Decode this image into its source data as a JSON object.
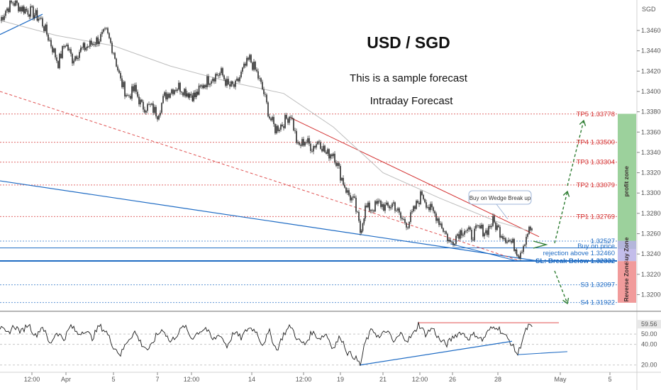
{
  "chart_data": {
    "type": "line",
    "title": "USD / SGD",
    "subtitle_lines": [
      "This is a sample forecast",
      "Intraday Forecast"
    ],
    "currency_label": "SGD",
    "y_ticks": [
      1.346,
      1.344,
      1.342,
      1.34,
      1.338,
      1.336,
      1.334,
      1.332,
      1.33,
      1.328,
      1.326,
      1.324,
      1.322,
      1.32
    ],
    "ylim": [
      1.3185,
      1.349
    ],
    "x_ticks": [
      "12:00",
      "Apr",
      "5",
      "7",
      "12:00",
      "14",
      "12:00",
      "19",
      "21",
      "12:00",
      "26",
      "28",
      "May",
      "5"
    ],
    "price_labels": [
      {
        "text": "TP5 1.33778",
        "value": 1.33778,
        "color": "#d32f2f"
      },
      {
        "text": "TP4 1.33500",
        "value": 1.335,
        "color": "#d32f2f"
      },
      {
        "text": "TP3 1.33304",
        "value": 1.33304,
        "color": "#d32f2f"
      },
      {
        "text": "TP2 1.33079",
        "value": 1.33079,
        "color": "#d32f2f"
      },
      {
        "text": "TP1 1.32769",
        "value": 1.32769,
        "color": "#d32f2f"
      },
      {
        "text": "1.32527",
        "value": 1.32527,
        "color": "#1e6bc4"
      },
      {
        "text": "SL: Break Below 1.32332",
        "value": 1.32332,
        "color": "#1565c0"
      },
      {
        "text": "S3 1.32097",
        "value": 1.32097,
        "color": "#1e6bc4"
      },
      {
        "text": "S4 1.31922",
        "value": 1.31922,
        "color": "#1e6bc4"
      }
    ],
    "buy_text": [
      "Buy on price",
      "rejection above 1.32460"
    ],
    "callout": "Buy on Wedge Break up",
    "zones": [
      {
        "label": "profit zone",
        "from": 1.3245,
        "to": 1.3378,
        "color": "#8bc98b"
      },
      {
        "label": "Buy Zone",
        "from": 1.3233,
        "to": 1.3253,
        "color": "#b9b2e6"
      },
      {
        "label": "Reverse Zone",
        "from": 1.3192,
        "to": 1.3233,
        "color": "#ef8a8a"
      }
    ],
    "price_series": [
      [
        0,
        1.347
      ],
      [
        8,
        1.348
      ],
      [
        18,
        1.3488
      ],
      [
        30,
        1.3482
      ],
      [
        45,
        1.3478
      ],
      [
        58,
        1.347
      ],
      [
        70,
        1.345
      ],
      [
        82,
        1.3428
      ],
      [
        92,
        1.3448
      ],
      [
        102,
        1.3432
      ],
      [
        112,
        1.344
      ],
      [
        125,
        1.3445
      ],
      [
        140,
        1.3452
      ],
      [
        150,
        1.3458
      ],
      [
        160,
        1.344
      ],
      [
        170,
        1.341
      ],
      [
        180,
        1.3395
      ],
      [
        190,
        1.3402
      ],
      [
        200,
        1.3385
      ],
      [
        212,
        1.3385
      ],
      [
        222,
        1.3378
      ],
      [
        232,
        1.3395
      ],
      [
        242,
        1.3402
      ],
      [
        252,
        1.3405
      ],
      [
        262,
        1.34
      ],
      [
        275,
        1.3395
      ],
      [
        288,
        1.3408
      ],
      [
        300,
        1.3415
      ],
      [
        312,
        1.3418
      ],
      [
        322,
        1.3405
      ],
      [
        332,
        1.3405
      ],
      [
        342,
        1.342
      ],
      [
        352,
        1.3432
      ],
      [
        362,
        1.3418
      ],
      [
        372,
        1.3398
      ],
      [
        380,
        1.3375
      ],
      [
        388,
        1.3363
      ],
      [
        398,
        1.3368
      ],
      [
        410,
        1.3378
      ],
      [
        420,
        1.3345
      ],
      [
        430,
        1.3352
      ],
      [
        440,
        1.3345
      ],
      [
        450,
        1.3352
      ],
      [
        460,
        1.3338
      ],
      [
        470,
        1.334
      ],
      [
        480,
        1.3318
      ],
      [
        490,
        1.33
      ],
      [
        500,
        1.329
      ],
      [
        508,
        1.3262
      ],
      [
        515,
        1.3285
      ],
      [
        525,
        1.3285
      ],
      [
        535,
        1.329
      ],
      [
        545,
        1.3285
      ],
      [
        555,
        1.329
      ],
      [
        565,
        1.3275
      ],
      [
        575,
        1.327
      ],
      [
        585,
        1.3285
      ],
      [
        595,
        1.33
      ],
      [
        605,
        1.3285
      ],
      [
        615,
        1.3278
      ],
      [
        625,
        1.3265
      ],
      [
        635,
        1.325
      ],
      [
        645,
        1.326
      ],
      [
        655,
        1.3265
      ],
      [
        665,
        1.3258
      ],
      [
        675,
        1.3265
      ],
      [
        685,
        1.3262
      ],
      [
        695,
        1.3272
      ],
      [
        705,
        1.3262
      ],
      [
        715,
        1.3255
      ],
      [
        725,
        1.3248
      ],
      [
        732,
        1.324
      ],
      [
        738,
        1.325
      ],
      [
        744,
        1.3262
      ],
      [
        750,
        1.3265
      ]
    ],
    "rsi_y_ticks": [
      59.56,
      50.0,
      40.0,
      20.0
    ],
    "rsi_ylim": [
      15,
      70
    ],
    "rsi_series": [
      [
        0,
        56
      ],
      [
        10,
        50
      ],
      [
        20,
        58
      ],
      [
        30,
        52
      ],
      [
        40,
        60
      ],
      [
        50,
        48
      ],
      [
        60,
        58
      ],
      [
        70,
        40
      ],
      [
        80,
        52
      ],
      [
        90,
        45
      ],
      [
        100,
        58
      ],
      [
        110,
        50
      ],
      [
        120,
        54
      ],
      [
        130,
        46
      ],
      [
        140,
        58
      ],
      [
        150,
        52
      ],
      [
        160,
        38
      ],
      [
        170,
        30
      ],
      [
        180,
        44
      ],
      [
        190,
        52
      ],
      [
        200,
        40
      ],
      [
        210,
        34
      ],
      [
        220,
        48
      ],
      [
        230,
        55
      ],
      [
        240,
        42
      ],
      [
        250,
        50
      ],
      [
        260,
        58
      ],
      [
        270,
        46
      ],
      [
        280,
        52
      ],
      [
        290,
        56
      ],
      [
        300,
        44
      ],
      [
        310,
        50
      ],
      [
        320,
        38
      ],
      [
        330,
        52
      ],
      [
        340,
        46
      ],
      [
        350,
        56
      ],
      [
        360,
        54
      ],
      [
        370,
        40
      ],
      [
        380,
        52
      ],
      [
        390,
        34
      ],
      [
        400,
        50
      ],
      [
        410,
        58
      ],
      [
        420,
        44
      ],
      [
        430,
        40
      ],
      [
        440,
        52
      ],
      [
        450,
        46
      ],
      [
        460,
        50
      ],
      [
        470,
        36
      ],
      [
        480,
        48
      ],
      [
        490,
        32
      ],
      [
        500,
        28
      ],
      [
        508,
        20
      ],
      [
        515,
        42
      ],
      [
        525,
        55
      ],
      [
        535,
        46
      ],
      [
        545,
        54
      ],
      [
        555,
        42
      ],
      [
        565,
        50
      ],
      [
        575,
        44
      ],
      [
        585,
        52
      ],
      [
        590,
        60
      ],
      [
        600,
        50
      ],
      [
        610,
        56
      ],
      [
        620,
        44
      ],
      [
        630,
        40
      ],
      [
        640,
        48
      ],
      [
        650,
        52
      ],
      [
        660,
        46
      ],
      [
        670,
        50
      ],
      [
        680,
        44
      ],
      [
        690,
        54
      ],
      [
        700,
        58
      ],
      [
        710,
        50
      ],
      [
        720,
        42
      ],
      [
        730,
        30
      ],
      [
        738,
        48
      ],
      [
        745,
        58
      ],
      [
        752,
        55
      ]
    ]
  }
}
